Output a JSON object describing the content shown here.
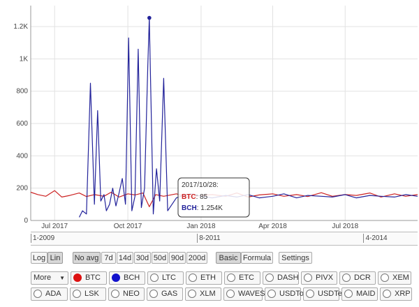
{
  "chart_data": {
    "type": "line",
    "y_ticks": [
      "0",
      "200",
      "400",
      "600",
      "800",
      "1K",
      "1.2K"
    ],
    "y_tick_values": [
      0,
      200,
      400,
      600,
      800,
      1000,
      1200
    ],
    "ylim": [
      0,
      1330
    ],
    "x_ticks": [
      "Jul 2017",
      "Oct 2017",
      "Jan 2018",
      "Apr 2018",
      "Jul 2018"
    ],
    "xlim": [
      "2017-06-01",
      "2018-09-30"
    ],
    "grid": true,
    "series": [
      {
        "name": "BTC",
        "color": "#cc2222",
        "x": [
          "2017-06-01",
          "2017-06-10",
          "2017-06-20",
          "2017-07-01",
          "2017-07-10",
          "2017-07-20",
          "2017-08-01",
          "2017-08-10",
          "2017-08-20",
          "2017-09-01",
          "2017-09-10",
          "2017-09-20",
          "2017-10-01",
          "2017-10-10",
          "2017-10-20",
          "2017-10-28",
          "2017-11-05",
          "2017-11-15",
          "2017-12-01",
          "2017-12-15",
          "2018-01-01",
          "2018-01-15",
          "2018-02-01",
          "2018-02-15",
          "2018-03-01",
          "2018-03-15",
          "2018-04-01",
          "2018-04-15",
          "2018-05-01",
          "2018-05-15",
          "2018-06-01",
          "2018-06-15",
          "2018-07-01",
          "2018-07-15",
          "2018-08-01",
          "2018-08-15",
          "2018-09-01",
          "2018-09-15",
          "2018-09-30"
        ],
        "y": [
          175,
          160,
          150,
          185,
          145,
          155,
          170,
          148,
          160,
          150,
          175,
          145,
          165,
          158,
          170,
          85,
          160,
          150,
          165,
          145,
          155,
          160,
          150,
          170,
          145,
          158,
          165,
          150,
          160,
          148,
          172,
          150,
          160,
          155,
          170,
          145,
          165,
          150,
          160
        ]
      },
      {
        "name": "BCH",
        "color": "#22229a",
        "x": [
          "2017-08-01",
          "2017-08-05",
          "2017-08-10",
          "2017-08-15",
          "2017-08-20",
          "2017-08-24",
          "2017-08-28",
          "2017-09-01",
          "2017-09-04",
          "2017-09-08",
          "2017-09-12",
          "2017-09-16",
          "2017-09-20",
          "2017-09-24",
          "2017-09-28",
          "2017-10-02",
          "2017-10-06",
          "2017-10-10",
          "2017-10-14",
          "2017-10-18",
          "2017-10-22",
          "2017-10-26",
          "2017-10-28",
          "2017-11-02",
          "2017-11-06",
          "2017-11-10",
          "2017-11-15",
          "2017-11-20",
          "2017-12-01",
          "2017-12-10",
          "2017-12-20",
          "2018-01-01",
          "2018-01-15",
          "2018-02-01",
          "2018-02-15",
          "2018-03-01",
          "2018-03-15",
          "2018-04-01",
          "2018-04-15",
          "2018-05-01",
          "2018-05-15",
          "2018-06-01",
          "2018-06-15",
          "2018-07-01",
          "2018-07-15",
          "2018-08-01",
          "2018-08-15",
          "2018-09-01",
          "2018-09-15",
          "2018-09-30"
        ],
        "y": [
          20,
          60,
          40,
          850,
          100,
          680,
          120,
          160,
          60,
          100,
          200,
          90,
          170,
          260,
          100,
          1130,
          60,
          150,
          1060,
          80,
          200,
          950,
          1254,
          40,
          320,
          120,
          880,
          60,
          140,
          155,
          165,
          150,
          140,
          155,
          145,
          160,
          140,
          150,
          165,
          140,
          155,
          150,
          145,
          160,
          140,
          155,
          150,
          145,
          160,
          150
        ]
      }
    ],
    "highlight": {
      "series": "BCH",
      "x": "2017-10-28",
      "y": 1254
    },
    "tooltip": {
      "date": "2017/10/28:",
      "rows": [
        {
          "series": "BTC",
          "value": "85",
          "color": "#cc2222"
        },
        {
          "series": "BCH",
          "value": "1.254K",
          "color": "#22229a"
        }
      ]
    }
  },
  "range_slider": {
    "labels": [
      "1-2009",
      "8-2011",
      "4-2014"
    ],
    "label_x": [
      0,
      0.43,
      0.86
    ]
  },
  "controls": {
    "scale": [
      {
        "label": "Log",
        "active": false
      },
      {
        "label": "Lin",
        "active": true
      }
    ],
    "averaging": [
      {
        "label": "No avg",
        "active": true
      },
      {
        "label": "7d",
        "active": false
      },
      {
        "label": "14d",
        "active": false
      },
      {
        "label": "30d",
        "active": false
      },
      {
        "label": "50d",
        "active": false
      },
      {
        "label": "90d",
        "active": false
      },
      {
        "label": "200d",
        "active": false
      }
    ],
    "mode": [
      {
        "label": "Basic",
        "active": true
      },
      {
        "label": "Formula",
        "active": false
      }
    ],
    "settings_label": "Settings"
  },
  "coins": {
    "more_label": "More",
    "row1": [
      {
        "name": "BTC",
        "selected": true,
        "color": "#dd1111"
      },
      {
        "name": "BCH",
        "selected": true,
        "color": "#1111cc"
      },
      {
        "name": "LTC",
        "selected": false
      },
      {
        "name": "ETH",
        "selected": false
      },
      {
        "name": "ETC",
        "selected": false
      },
      {
        "name": "DASH",
        "selected": false
      },
      {
        "name": "PIVX",
        "selected": false
      },
      {
        "name": "DCR",
        "selected": false
      },
      {
        "name": "XEM",
        "selected": false
      }
    ],
    "row2": [
      {
        "name": "ADA",
        "selected": false
      },
      {
        "name": "LSK",
        "selected": false
      },
      {
        "name": "NEO",
        "selected": false
      },
      {
        "name": "GAS",
        "selected": false
      },
      {
        "name": "XLM",
        "selected": false
      },
      {
        "name": "WAVES",
        "selected": false
      },
      {
        "name": "USDTo",
        "selected": false
      },
      {
        "name": "USDTe",
        "selected": false
      },
      {
        "name": "MAID",
        "selected": false
      },
      {
        "name": "XRP",
        "selected": false
      }
    ]
  }
}
